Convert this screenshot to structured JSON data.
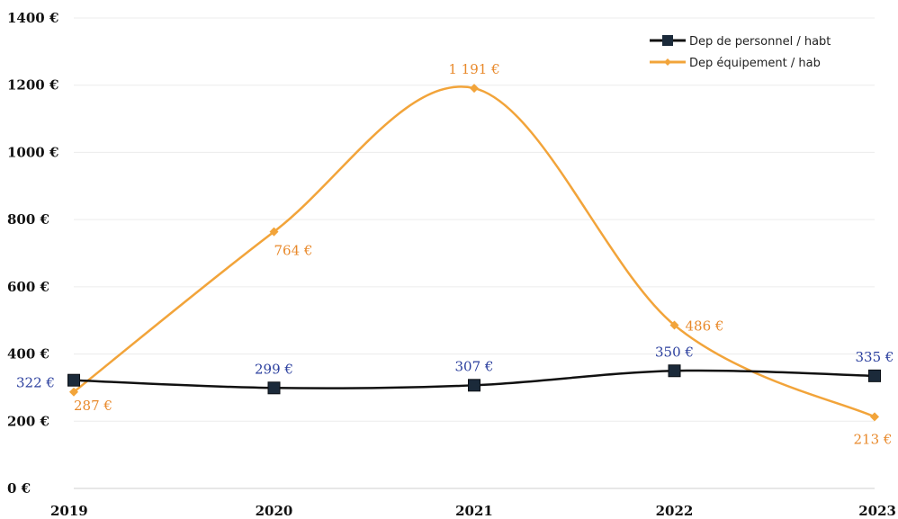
{
  "chart_data": {
    "type": "line",
    "categories": [
      "2019",
      "2020",
      "2021",
      "2022",
      "2023"
    ],
    "ylim": [
      0,
      1400
    ],
    "yticks": [
      0,
      200,
      400,
      600,
      800,
      1000,
      1200,
      1400
    ],
    "ytick_labels": [
      "0 €",
      "200 €",
      "400 €",
      "600 €",
      "800 €",
      "1000 €",
      "1200 €",
      "1400 €"
    ],
    "grid": true,
    "smooth": true,
    "legend_position": "top-right",
    "series": [
      {
        "name": "Dep de personnel / habt",
        "values": [
          322,
          299,
          307,
          350,
          335
        ],
        "labels": [
          "322 €",
          "299 €",
          "307 €",
          "350 €",
          "335 €"
        ],
        "color": "#111111",
        "label_color": "#2b3f9e",
        "marker": "square"
      },
      {
        "name": "Dep équipement / hab",
        "values": [
          287,
          764,
          1191,
          486,
          213
        ],
        "labels": [
          "287 €",
          "764 €",
          "1 191 €",
          "486 €",
          "213 €"
        ],
        "color": "#f2a43a",
        "label_color": "#e8892b",
        "marker": "diamond"
      }
    ]
  }
}
